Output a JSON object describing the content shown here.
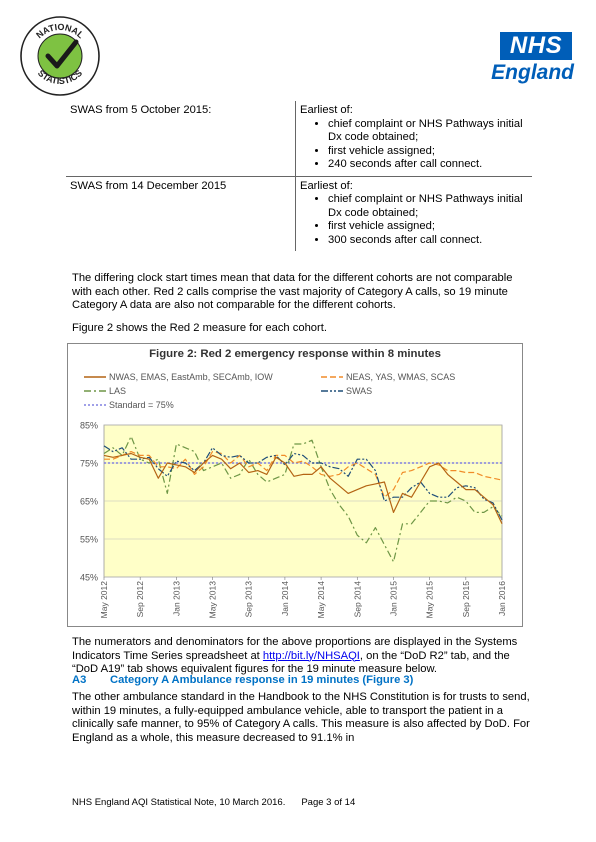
{
  "logos": {
    "national_statistics_text": "NATIONAL STATISTICS",
    "nhs_box": "NHS",
    "nhs_region": "England",
    "nhs_color": "#005EB8"
  },
  "cohort_table": {
    "rows": [
      {
        "cohort": "SWAS from 5 October 2015:",
        "intro": "Earliest of:",
        "bullets": [
          "chief complaint or NHS Pathways initial Dx code obtained;",
          "first vehicle assigned;",
          "240 seconds after call connect."
        ]
      },
      {
        "cohort": "SWAS from 14 December 2015",
        "intro": "Earliest of:",
        "bullets": [
          "chief complaint or NHS Pathways initial Dx code obtained;",
          "first vehicle assigned;",
          "300 seconds after call connect."
        ]
      }
    ]
  },
  "text": {
    "para1": "The differing clock start times mean that data for the different cohorts are not comparable with each other. Red 2 calls comprise the vast majority of Category A calls, so 19 minute Category A data are also not comparable for the different cohorts.",
    "para2": "Figure 2 shows the Red 2 measure for each cohort.",
    "para3_pre": "The numerators and denominators for the above proportions are displayed in the Systems Indicators Time Series spreadsheet at ",
    "para3_link": "http://bit.ly/NHSAQI",
    "para3_post": ", on the “DoD R2” tab, and the “DoD A19” tab shows equivalent figures for the 19 minute measure below.",
    "heading_num": "A3",
    "heading_title": "Category A Ambulance response in 19 minutes (Figure 3)",
    "para4": "The other ambulance standard in the Handbook to the NHS Constitution is for trusts to send, within 19 minutes, a fully-equipped ambulance vehicle, able to transport the patient in a clinically safe manner, to 95% of Category A calls. This measure is also affected by DoD. For England as a whole, this measure decreased to 91.1% in"
  },
  "footer": {
    "note": "NHS England AQI Statistical Note, 10 March 2016.",
    "page": "Page 3 of 14"
  },
  "chart_data": {
    "type": "line",
    "title": "Figure 2: Red 2 emergency response within 8 minutes",
    "x": [
      "May 2012",
      "Jun 2012",
      "Jul 2012",
      "Aug 2012",
      "Sep 2012",
      "Oct 2012",
      "Nov 2012",
      "Dec 2012",
      "Jan 2013",
      "Feb 2013",
      "Mar 2013",
      "Apr 2013",
      "May 2013",
      "Jun 2013",
      "Jul 2013",
      "Aug 2013",
      "Sep 2013",
      "Oct 2013",
      "Nov 2013",
      "Dec 2013",
      "Jan 2014",
      "Feb 2014",
      "Mar 2014",
      "Apr 2014",
      "May 2014",
      "Jun 2014",
      "Jul 2014",
      "Aug 2014",
      "Sep 2014",
      "Oct 2014",
      "Nov 2014",
      "Dec 2014",
      "Jan 2015",
      "Feb 2015",
      "Mar 2015",
      "Apr 2015",
      "May 2015",
      "Jun 2015",
      "Jul 2015",
      "Aug 2015",
      "Sep 2015",
      "Oct 2015",
      "Nov 2015",
      "Dec 2015",
      "Jan 2016"
    ],
    "x_tick_labels": [
      "May 2012",
      "Sep 2012",
      "Jan 2013",
      "May 2013",
      "Sep 2013",
      "Jan 2014",
      "May 2014",
      "Sep 2014",
      "Jan 2015",
      "May 2015",
      "Sep 2015",
      "Jan 2016"
    ],
    "y_tick_labels": [
      "45%",
      "55%",
      "65%",
      "75%",
      "85%"
    ],
    "ylim": [
      45,
      85
    ],
    "y_ticks": [
      45,
      55,
      65,
      75,
      85
    ],
    "grid": true,
    "legend_position": "top",
    "plot_background": "#FFFFC8",
    "series": [
      {
        "name": "NWAS, EMAS, EastAmb, SECAmb, IOW",
        "color": "#B46414",
        "dash": "solid",
        "values": [
          77,
          76.5,
          77,
          77.5,
          76.5,
          76,
          71,
          75,
          74.5,
          74,
          72.5,
          75,
          77,
          76,
          73.5,
          75,
          72.5,
          73,
          72,
          76.5,
          75,
          71.5,
          72,
          72,
          74,
          71,
          69,
          67,
          68,
          69,
          69.5,
          70,
          62,
          67,
          66,
          70,
          74,
          75,
          72,
          70,
          68,
          68,
          66,
          64,
          59
        ]
      },
      {
        "name": "NEAS, YAS, WMAS, SCAS",
        "color": "#F08C28",
        "dash": "6,3",
        "values": [
          76,
          76,
          77,
          78,
          77,
          77,
          74,
          74,
          73.5,
          76,
          72,
          74,
          78,
          77.5,
          75,
          77,
          74,
          75,
          73,
          77,
          77,
          75,
          75.5,
          74,
          72,
          71.5,
          72,
          74,
          75,
          73.5,
          72,
          66,
          68,
          72.5,
          73,
          74,
          75,
          74.5,
          73,
          73,
          72.5,
          72.5,
          71.5,
          71,
          70.5
        ]
      },
      {
        "name": "LAS",
        "color": "#6E9646",
        "dash": "7,3,2,3",
        "values": [
          77.5,
          79,
          77,
          82,
          76,
          75,
          76,
          67,
          80,
          79,
          78,
          73,
          74,
          75,
          71,
          72,
          76,
          72,
          70,
          71,
          72,
          80,
          80,
          81,
          74,
          68,
          64,
          61,
          56,
          54,
          58,
          53.5,
          49,
          59,
          59,
          62,
          65,
          65,
          64.5,
          66,
          65,
          62,
          62,
          63.5,
          61
        ]
      },
      {
        "name": "SWAS",
        "color": "#1F4E79",
        "dash": "7,2,2,2,2,2",
        "values": [
          79.5,
          78,
          79,
          76,
          76,
          76.5,
          73.5,
          71.5,
          75.5,
          75,
          73,
          75,
          79,
          77,
          76.5,
          77,
          75,
          75,
          76.5,
          77,
          74.5,
          77.5,
          77,
          75,
          75,
          74,
          73.5,
          71.5,
          76,
          76,
          73,
          65,
          66,
          66,
          68.5,
          70,
          67,
          66,
          66,
          68.5,
          69,
          68.5,
          65.5,
          64.5,
          60
        ]
      },
      {
        "name": "Standard = 75%",
        "color": "#8080E0",
        "dash": "2,2",
        "values": [
          75,
          75,
          75,
          75,
          75,
          75,
          75,
          75,
          75,
          75,
          75,
          75,
          75,
          75,
          75,
          75,
          75,
          75,
          75,
          75,
          75,
          75,
          75,
          75,
          75,
          75,
          75,
          75,
          75,
          75,
          75,
          75,
          75,
          75,
          75,
          75,
          75,
          75,
          75,
          75,
          75,
          75,
          75,
          75,
          75
        ]
      }
    ]
  }
}
